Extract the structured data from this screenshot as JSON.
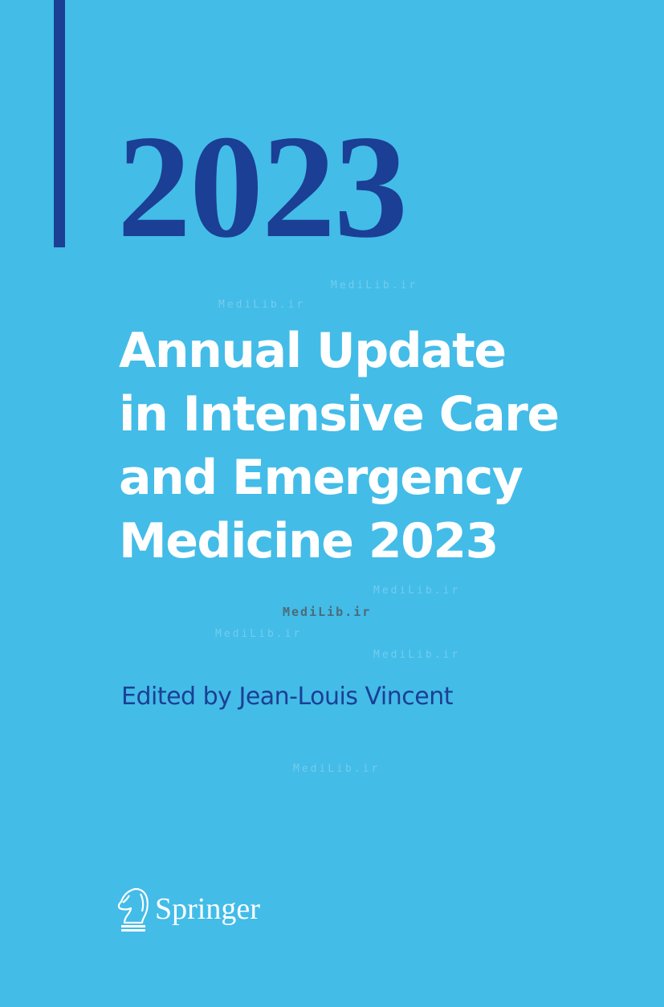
{
  "cover": {
    "year": "2023",
    "title_lines": [
      "Annual Update",
      "in Intensive Care",
      "and Emergency",
      "Medicine 2023"
    ],
    "editor": "Edited by Jean-Louis Vincent",
    "publisher": "Springer",
    "watermark": "MediLib.ir",
    "colors": {
      "background": "#43bce8",
      "accent": "#1b3f94",
      "title": "#ffffff"
    }
  }
}
